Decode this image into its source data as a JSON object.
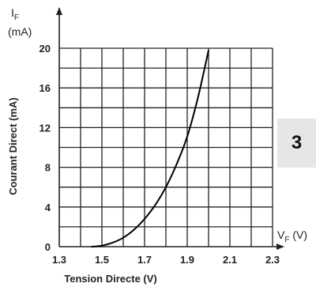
{
  "chart_data": {
    "type": "line",
    "title": "",
    "x_axis": {
      "label": "Tension Directe (V)",
      "symbol_main": "V",
      "symbol_sub": "F",
      "symbol_unit": " (V)",
      "range": [
        1.3,
        2.3
      ],
      "ticks": [
        1.3,
        1.5,
        1.7,
        1.9,
        2.1,
        2.3
      ],
      "tick_labels": [
        "1.3",
        "1.5",
        "1.7",
        "1.9",
        "2.1",
        "2.3"
      ],
      "grid_step": 0.1
    },
    "y_axis": {
      "label": "Courant Direct  (mA)",
      "symbol_main": "I",
      "symbol_sub": "F",
      "symbol_unit": "(mA)",
      "range": [
        0,
        20
      ],
      "ticks": [
        0,
        4,
        8,
        12,
        16,
        20
      ],
      "tick_labels": [
        "0",
        "4",
        "8",
        "12",
        "16",
        "20"
      ],
      "grid_step": 2
    },
    "grid": true,
    "series": [
      {
        "x": [
          1.45,
          1.5,
          1.55,
          1.6,
          1.65,
          1.7,
          1.75,
          1.8,
          1.85,
          1.9,
          1.95,
          2.0
        ],
        "y": [
          0,
          0.1,
          0.4,
          0.9,
          1.7,
          2.8,
          4.2,
          6.0,
          8.3,
          11.1,
          15.0,
          19.8
        ]
      }
    ]
  },
  "badge": {
    "text": "3"
  },
  "colors": {
    "grid": "#222222",
    "curve": "#000000",
    "text": "#222222",
    "badge_bg": "#e6e6e6"
  }
}
